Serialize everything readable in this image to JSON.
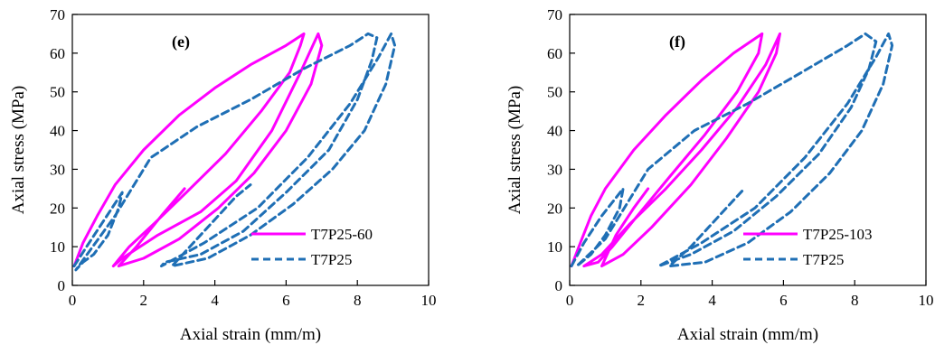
{
  "chart_data": [
    {
      "type": "line",
      "panel_label": "(e)",
      "xlabel": "Axial strain (mm/m)",
      "ylabel": "Axial stress (MPa)",
      "xlim": [
        0,
        10
      ],
      "ylim": [
        0,
        70
      ],
      "xticks": [
        0,
        2,
        4,
        6,
        8,
        10
      ],
      "yticks": [
        0,
        10,
        20,
        30,
        40,
        50,
        60,
        70
      ],
      "legend_position": "bottom-right",
      "series": [
        {
          "name": "T7P25-60",
          "color": "#ff00ff",
          "dash": "solid",
          "segments": [
            [
              [
                0.05,
                5
              ],
              [
                0.3,
                11
              ],
              [
                0.7,
                18
              ],
              [
                1.2,
                26
              ],
              [
                2.0,
                35
              ],
              [
                3.0,
                44
              ],
              [
                4.0,
                51
              ],
              [
                5.0,
                57
              ],
              [
                6.0,
                62
              ],
              [
                6.5,
                65
              ],
              [
                6.4,
                62
              ],
              [
                6.1,
                55
              ],
              [
                5.3,
                45
              ],
              [
                4.3,
                34
              ],
              [
                3.2,
                24
              ],
              [
                2.3,
                16
              ],
              [
                1.6,
                10
              ],
              [
                1.15,
                5
              ],
              [
                1.4,
                7
              ],
              [
                2.4,
                13
              ],
              [
                3.6,
                19
              ],
              [
                4.6,
                27
              ],
              [
                5.6,
                40
              ],
              [
                6.4,
                55
              ],
              [
                6.9,
                65
              ],
              [
                7.0,
                62
              ],
              [
                6.7,
                52
              ],
              [
                6.0,
                40
              ],
              [
                5.1,
                29
              ],
              [
                4.1,
                20
              ],
              [
                3.0,
                12
              ],
              [
                2.0,
                7
              ],
              [
                1.3,
                5
              ],
              [
                1.8,
                10
              ],
              [
                2.5,
                18
              ],
              [
                3.15,
                25
              ]
            ]
          ]
        },
        {
          "name": "T7P25",
          "color": "#1f6fb5",
          "dash": "dashed",
          "segments": [
            [
              [
                0.05,
                5
              ],
              [
                0.4,
                10
              ],
              [
                0.9,
                17
              ],
              [
                1.4,
                24
              ],
              [
                1.3,
                20
              ],
              [
                1.0,
                13
              ],
              [
                0.6,
                8
              ],
              [
                0.3,
                6
              ],
              [
                0.1,
                4
              ],
              [
                1.2,
                18
              ],
              [
                2.2,
                33
              ],
              [
                3.5,
                41
              ],
              [
                5.0,
                48
              ],
              [
                6.5,
                56
              ],
              [
                7.8,
                62
              ],
              [
                8.3,
                65
              ],
              [
                8.55,
                64
              ],
              [
                8.4,
                58
              ],
              [
                8.0,
                48
              ],
              [
                7.2,
                35
              ],
              [
                6.0,
                24
              ],
              [
                4.8,
                14
              ],
              [
                3.6,
                8
              ],
              [
                2.6,
                6
              ],
              [
                2.5,
                5
              ],
              [
                3.7,
                11
              ],
              [
                5.2,
                20
              ],
              [
                6.6,
                33
              ],
              [
                7.8,
                47
              ],
              [
                8.6,
                59
              ],
              [
                8.95,
                65
              ],
              [
                9.05,
                62
              ],
              [
                8.8,
                52
              ],
              [
                8.2,
                40
              ],
              [
                7.3,
                30
              ],
              [
                6.2,
                21
              ],
              [
                5.0,
                13
              ],
              [
                3.8,
                7
              ],
              [
                2.8,
                5
              ],
              [
                3.3,
                10
              ],
              [
                4.0,
                17
              ],
              [
                4.6,
                23
              ],
              [
                5.0,
                26
              ]
            ]
          ]
        }
      ]
    },
    {
      "type": "line",
      "panel_label": "(f)",
      "xlabel": "Axial strain (mm/m)",
      "ylabel": "Axial stress (MPa)",
      "xlim": [
        0,
        10
      ],
      "ylim": [
        0,
        70
      ],
      "xticks": [
        0,
        2,
        4,
        6,
        8,
        10
      ],
      "yticks": [
        0,
        10,
        20,
        30,
        40,
        50,
        60,
        70
      ],
      "legend_position": "bottom-right",
      "series": [
        {
          "name": "T7P25-103",
          "color": "#ff00ff",
          "dash": "solid",
          "segments": [
            [
              [
                0.05,
                5
              ],
              [
                0.3,
                11
              ],
              [
                0.6,
                18
              ],
              [
                1.0,
                25
              ],
              [
                1.8,
                35
              ],
              [
                2.7,
                44
              ],
              [
                3.7,
                53
              ],
              [
                4.6,
                60
              ],
              [
                5.4,
                65
              ],
              [
                5.3,
                60
              ],
              [
                4.7,
                50
              ],
              [
                3.8,
                39
              ],
              [
                2.8,
                28
              ],
              [
                1.9,
                18
              ],
              [
                1.2,
                10
              ],
              [
                0.8,
                6
              ],
              [
                0.4,
                5
              ],
              [
                0.9,
                8
              ],
              [
                1.7,
                16
              ],
              [
                2.7,
                25
              ],
              [
                3.7,
                35
              ],
              [
                4.7,
                46
              ],
              [
                5.5,
                57
              ],
              [
                5.9,
                65
              ],
              [
                5.8,
                60
              ],
              [
                5.3,
                50
              ],
              [
                4.4,
                38
              ],
              [
                3.4,
                26
              ],
              [
                2.3,
                15
              ],
              [
                1.5,
                8
              ],
              [
                0.9,
                5
              ],
              [
                1.3,
                13
              ],
              [
                1.8,
                20
              ],
              [
                2.2,
                25
              ]
            ]
          ]
        },
        {
          "name": "T7P25",
          "color": "#1f6fb5",
          "dash": "dashed",
          "segments": [
            [
              [
                0.05,
                5
              ],
              [
                0.4,
                11
              ],
              [
                0.9,
                18
              ],
              [
                1.5,
                25
              ],
              [
                1.4,
                20
              ],
              [
                1.0,
                13
              ],
              [
                0.6,
                8
              ],
              [
                0.2,
                5
              ],
              [
                1.0,
                12
              ],
              [
                2.2,
                30
              ],
              [
                3.5,
                40
              ],
              [
                5.0,
                47
              ],
              [
                6.5,
                55
              ],
              [
                7.8,
                62
              ],
              [
                8.3,
                65
              ],
              [
                8.6,
                63
              ],
              [
                8.4,
                56
              ],
              [
                7.9,
                46
              ],
              [
                7.0,
                34
              ],
              [
                5.8,
                23
              ],
              [
                4.6,
                14
              ],
              [
                3.4,
                8
              ],
              [
                2.5,
                5
              ],
              [
                3.7,
                11
              ],
              [
                5.2,
                20
              ],
              [
                6.6,
                33
              ],
              [
                7.8,
                47
              ],
              [
                8.6,
                59
              ],
              [
                8.95,
                65
              ],
              [
                9.05,
                62
              ],
              [
                8.8,
                52
              ],
              [
                8.2,
                40
              ],
              [
                7.3,
                29
              ],
              [
                6.2,
                19
              ],
              [
                5.0,
                11
              ],
              [
                3.8,
                6
              ],
              [
                2.8,
                5
              ],
              [
                3.4,
                10
              ],
              [
                4.1,
                17
              ],
              [
                4.6,
                22
              ],
              [
                4.9,
                25
              ]
            ]
          ]
        }
      ]
    }
  ]
}
